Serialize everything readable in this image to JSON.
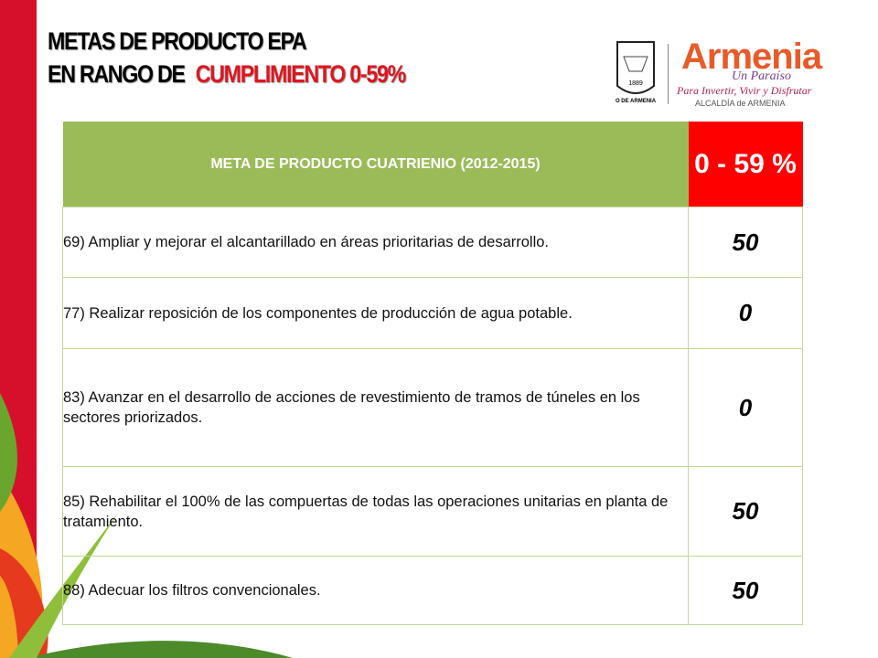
{
  "header": {
    "title_line1": "METAS DE PRODUCTO EPA",
    "title_line2_prefix": "EN RANGO DE",
    "title_line2_highlight": "CUMPLIMIENTO 0-59%"
  },
  "logo": {
    "seal_year": "1889",
    "seal_caption": "O DE ARMENIA",
    "brand": "Armenia",
    "tagline": "Un Paraíso",
    "slogan": "Para Invertir, Vivir y Disfrutar",
    "office": "ALCALDÍA de ARMENIA"
  },
  "table": {
    "header": [
      "META DE PRODUCTO CUATRIENIO (2012-2015)",
      "0 - 59 %"
    ],
    "rows": [
      [
        "69) Ampliar y mejorar el alcantarillado en áreas prioritarias de desarrollo.",
        "50"
      ],
      [
        "77) Realizar reposición de los componentes de producción de agua potable.",
        "0"
      ],
      [
        "83) Avanzar en el desarrollo de acciones de revestimiento de tramos de túneles en los sectores priorizados.",
        "0"
      ],
      [
        "85) Rehabilitar el 100% de las compuertas de todas las operaciones unitarias en planta de tratamiento.",
        "50"
      ],
      [
        "88) Adecuar los filtros convencionales.",
        "50"
      ]
    ]
  }
}
